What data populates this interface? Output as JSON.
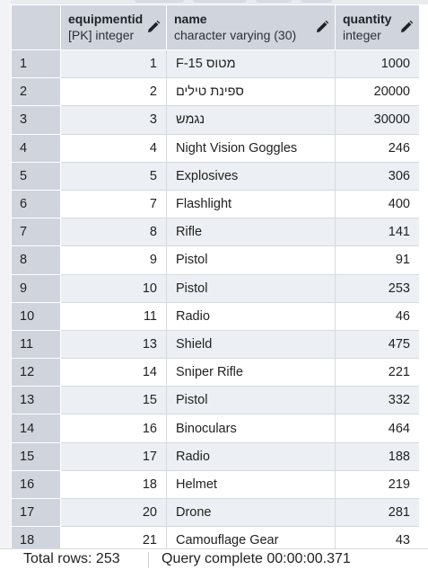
{
  "columns": [
    {
      "name": "equipmentid",
      "type": "[PK] integer"
    },
    {
      "name": "name",
      "type": "character varying (30)"
    },
    {
      "name": "quantity",
      "type": "integer"
    }
  ],
  "rows": [
    {
      "n": "1",
      "id": "1",
      "name": "מטוס F-15",
      "qty": "1000"
    },
    {
      "n": "2",
      "id": "2",
      "name": "ספינת טילים",
      "qty": "20000"
    },
    {
      "n": "3",
      "id": "3",
      "name": "נגמש",
      "qty": "30000"
    },
    {
      "n": "4",
      "id": "4",
      "name": "Night Vision Goggles",
      "qty": "246"
    },
    {
      "n": "5",
      "id": "5",
      "name": "Explosives",
      "qty": "306"
    },
    {
      "n": "6",
      "id": "7",
      "name": "Flashlight",
      "qty": "400"
    },
    {
      "n": "7",
      "id": "8",
      "name": "Rifle",
      "qty": "141"
    },
    {
      "n": "8",
      "id": "9",
      "name": "Pistol",
      "qty": "91"
    },
    {
      "n": "9",
      "id": "10",
      "name": "Pistol",
      "qty": "253"
    },
    {
      "n": "10",
      "id": "11",
      "name": "Radio",
      "qty": "46"
    },
    {
      "n": "11",
      "id": "13",
      "name": "Shield",
      "qty": "475"
    },
    {
      "n": "12",
      "id": "14",
      "name": "Sniper Rifle",
      "qty": "221"
    },
    {
      "n": "13",
      "id": "15",
      "name": "Pistol",
      "qty": "332"
    },
    {
      "n": "14",
      "id": "16",
      "name": "Binoculars",
      "qty": "464"
    },
    {
      "n": "15",
      "id": "17",
      "name": "Radio",
      "qty": "188"
    },
    {
      "n": "16",
      "id": "18",
      "name": "Helmet",
      "qty": "219"
    },
    {
      "n": "17",
      "id": "20",
      "name": "Drone",
      "qty": "281"
    },
    {
      "n": "18",
      "id": "21",
      "name": "Camouflage Gear",
      "qty": "43"
    }
  ],
  "status": {
    "total_rows": "Total rows: 253",
    "query": "Query complete 00:00:00.371"
  },
  "icons": {
    "edit": "pencil-icon"
  },
  "colors": {
    "header_bg": "#cfd4dd",
    "stripe": "#eceff3"
  }
}
